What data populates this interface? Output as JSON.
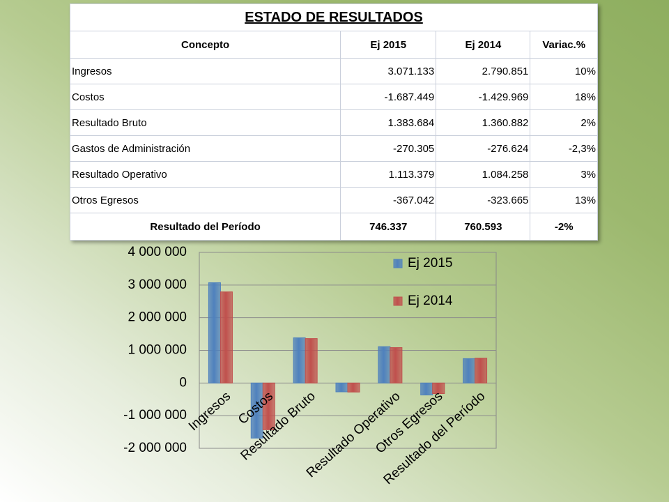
{
  "table": {
    "title": "ESTADO DE RESULTADOS",
    "columns": [
      "Concepto",
      "Ej 2015",
      "Ej 2014",
      "Variac.%"
    ],
    "rows": [
      [
        "Ingresos",
        "3.071.133",
        "2.790.851",
        "10%"
      ],
      [
        "Costos",
        "-1.687.449",
        "-1.429.969",
        "18%"
      ],
      [
        "Resultado Bruto",
        "1.383.684",
        "1.360.882",
        "2%"
      ],
      [
        "Gastos de Administración",
        "-270.305",
        "-276.624",
        "-2,3%"
      ],
      [
        "Resultado Operativo",
        "1.113.379",
        "1.084.258",
        "3%"
      ],
      [
        "Otros Egresos",
        "-367.042",
        "-323.665",
        "13%"
      ],
      [
        "Resultado del Período",
        "746.337",
        "760.593",
        "-2%"
      ]
    ]
  },
  "chart_data": {
    "type": "bar",
    "categories": [
      "Ingresos",
      "Costos",
      "Resultado Bruto",
      null,
      "Resultado Operativo",
      "Otros Egresos",
      "Resultado del Período"
    ],
    "series": [
      {
        "name": "Ej 2015",
        "color": "#4f81bd",
        "values": [
          3071133,
          -1687449,
          1383684,
          -270305,
          1113379,
          -367042,
          746337
        ]
      },
      {
        "name": "Ej 2014",
        "color": "#c0504d",
        "values": [
          2790851,
          -1429969,
          1360882,
          -276624,
          1084258,
          -323665,
          760593
        ]
      }
    ],
    "ylim": [
      -2000000,
      4000000
    ],
    "yticks": [
      {
        "value": -2000000,
        "label": "-2 000 000"
      },
      {
        "value": -1000000,
        "label": "-1 000 000"
      },
      0,
      {
        "value": 1000000,
        "label": "1 000 000"
      },
      {
        "value": 2000000,
        "label": "2 000 000"
      },
      {
        "value": 3000000,
        "label": "3 000 000"
      },
      {
        "value": 4000000,
        "label": "4 000 000"
      }
    ],
    "grid": true,
    "legend": "top-right"
  }
}
